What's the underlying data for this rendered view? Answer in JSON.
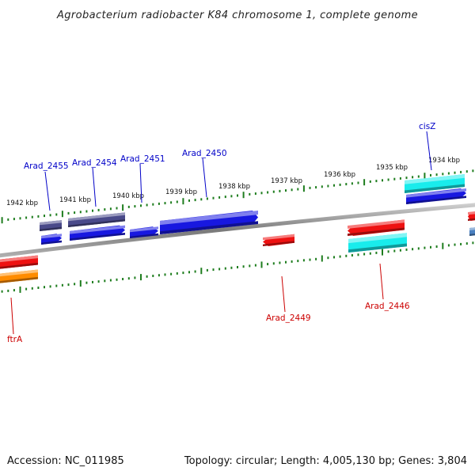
{
  "title": "Agrobacterium radiobacter K84 chromosome 1, complete genome",
  "footer": {
    "accession": "Accession: NC_011985",
    "summary": "Topology: circular; Length: 4,005,130 bp; Genes: 3,804"
  },
  "colors": {
    "backbone": "#8a8a8a",
    "ruler": "#1e7d1e",
    "plus_label": "#0000c8",
    "minus_label": "#cc0000",
    "blue": "#1818e0",
    "navy": "#4a4a8a",
    "red": "#ee1111",
    "cyan": "#19ecec",
    "orange": "#ff8c00",
    "steel": "#4a80c0"
  },
  "rulers": {
    "kbp_labels": [
      "1942 kbp",
      "1941 kbp",
      "1940 kbp",
      "1939 kbp",
      "1938 kbp",
      "1937 kbp",
      "1936 kbp",
      "1935 kbp",
      "1934 kbp"
    ]
  },
  "genes": [
    {
      "label": "Arad_2455",
      "strand": "plus"
    },
    {
      "label": "Arad_2454",
      "strand": "plus"
    },
    {
      "label": "Arad_2451",
      "strand": "plus"
    },
    {
      "label": "Arad_2450",
      "strand": "plus"
    },
    {
      "label": "cisZ",
      "strand": "plus"
    },
    {
      "label": "Arad_2449",
      "strand": "minus"
    },
    {
      "label": "Arad_2446",
      "strand": "minus"
    },
    {
      "label": "ftrA",
      "strand": "minus"
    }
  ]
}
